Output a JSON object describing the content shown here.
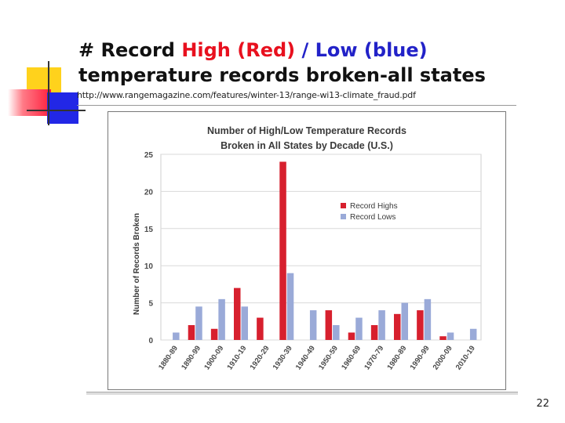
{
  "slide": {
    "title_prefix": "# Record ",
    "title_high": "High (Red)",
    "title_sep": " / ",
    "title_low": "Low (blue)",
    "title_suffix": "temperature records broken-all states",
    "source_url": "http://www.rangemagazine.com/features/winter-13/range-wi13-climate_fraud.pdf",
    "page_number": "22",
    "colors": {
      "title_high": "#e8101e",
      "title_low": "#2222c8",
      "accent_yellow": "#ffd21c",
      "accent_blue": "#2227e6"
    }
  },
  "chart_data": {
    "type": "bar",
    "title": "Number of High/Low Temperature Records Broken in All States by Decade (U.S.)",
    "title_line1": "Number of High/Low Temperature Records",
    "title_line2": "Broken in All States by Decade (U.S.)",
    "xlabel": "",
    "ylabel": "Number of Records Broken",
    "ylim": [
      0,
      25
    ],
    "yticks": [
      0,
      5,
      10,
      15,
      20,
      25
    ],
    "grid": true,
    "legend_position": "right",
    "categories": [
      "1880-89",
      "1890-99",
      "1900-09",
      "1910-19",
      "1920-29",
      "1930-39",
      "1940-49",
      "1950-59",
      "1960-69",
      "1970-79",
      "1980-89",
      "1990-99",
      "2000-09",
      "2010-19"
    ],
    "series": [
      {
        "name": "Record Highs",
        "color": "#d7202e",
        "values": [
          0,
          2,
          1.5,
          7,
          3,
          24,
          0,
          4,
          1,
          2,
          3.5,
          4,
          0.5,
          0
        ]
      },
      {
        "name": "Record Lows",
        "color": "#9aaad8",
        "values": [
          1,
          4.5,
          5.5,
          4.5,
          0,
          9,
          4,
          2,
          3,
          4,
          5,
          5.5,
          1,
          1.5
        ]
      }
    ]
  }
}
